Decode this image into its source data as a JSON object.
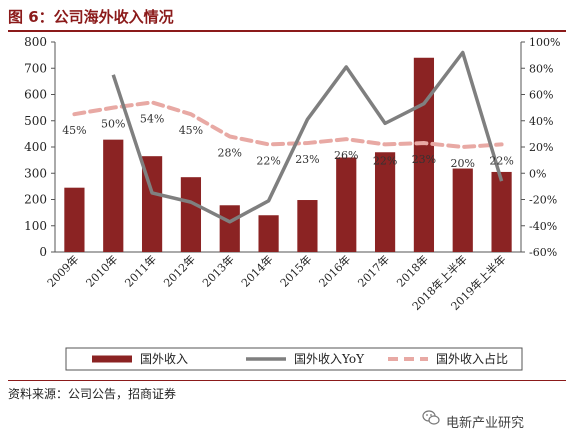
{
  "header": {
    "title": "图 6：公司海外收入情况"
  },
  "source": "资料来源：公司公告，招商证券",
  "watermark": {
    "text": "电新产业研究",
    "icon": "wechat-icon"
  },
  "colors": {
    "bar": "#8b2323",
    "yoy": "#7f7f7f",
    "share": "#e8a9a4",
    "title": "#8b1a1a"
  },
  "chart_data": {
    "type": "bar",
    "categories": [
      "2009年",
      "2010年",
      "2011年",
      "2012年",
      "2013年",
      "2014年",
      "2015年",
      "2016年",
      "2017年",
      "2018年",
      "2018年上半年",
      "2019年上半年"
    ],
    "left_axis": {
      "min": 0,
      "max": 800,
      "ticks": [
        "0",
        "100",
        "200",
        "300",
        "400",
        "500",
        "600",
        "700",
        "800"
      ]
    },
    "right_axis": {
      "min": -60,
      "max": 100,
      "ticks": [
        "-60%",
        "-40%",
        "-20%",
        "0%",
        "20%",
        "40%",
        "60%",
        "80%",
        "100%"
      ]
    },
    "series": [
      {
        "name": "国外收入",
        "type": "bar",
        "axis": "left",
        "values": [
          245,
          428,
          365,
          285,
          178,
          140,
          198,
          360,
          380,
          740,
          318,
          305
        ]
      },
      {
        "name": "国外收入YoY",
        "type": "line",
        "axis": "right",
        "values": [
          null,
          75,
          -15,
          -22,
          -37,
          -21,
          41,
          81,
          38,
          53,
          92,
          -6
        ]
      },
      {
        "name": "国外收入占比",
        "type": "dashed-line",
        "axis": "right",
        "values": [
          45,
          50,
          54,
          45,
          28,
          22,
          23,
          26,
          22,
          23,
          20,
          22
        ],
        "labels": [
          "45%",
          "50%",
          "54%",
          "45%",
          "28%",
          "22%",
          "23%",
          "26%",
          "22%",
          "23%",
          "20%",
          "22%"
        ]
      }
    ],
    "legend": {
      "position": "bottom"
    },
    "grid": false
  }
}
